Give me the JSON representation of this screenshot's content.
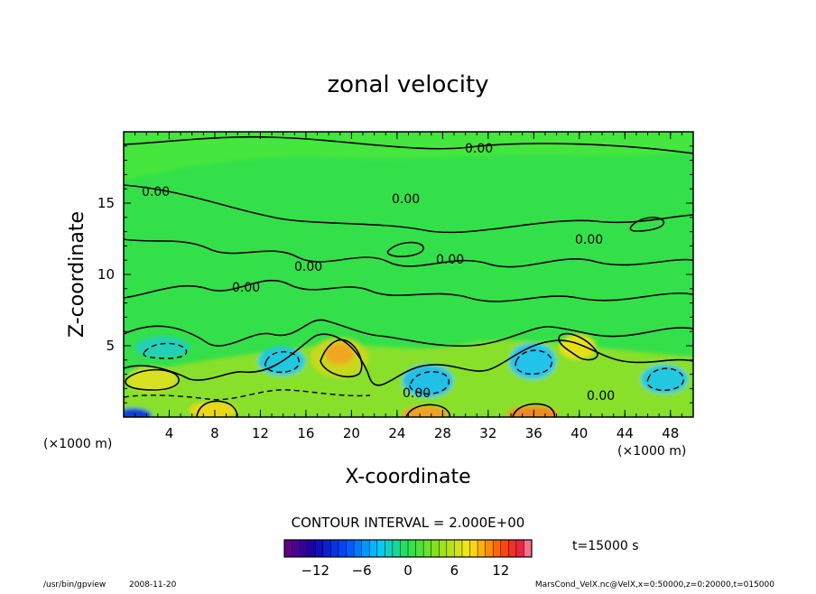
{
  "chart_data": {
    "type": "heatmap",
    "title": "zonal velocity",
    "xlabel": "X-coordinate",
    "ylabel": "Z-coordinate",
    "x_unit_label": "(×1000 m)",
    "x_unit_label_right": "(×1000 m)",
    "xlim": [
      0,
      50
    ],
    "ylim": [
      0,
      20
    ],
    "x_ticks": [
      4,
      8,
      12,
      16,
      20,
      24,
      28,
      32,
      36,
      40,
      44,
      48
    ],
    "x_tick_labels": [
      "4",
      "8",
      "12",
      "16",
      "20",
      "24",
      "28",
      "32",
      "36",
      "40",
      "44",
      "48"
    ],
    "y_ticks": [
      5,
      10,
      15
    ],
    "y_tick_labels": [
      "5",
      "10",
      "15"
    ],
    "contour_interval_text": "CONTOUR INTERVAL = 2.000E+00",
    "contour_label": "0.00",
    "time_label": "t=15000 s",
    "colorbar": {
      "range": [
        -16,
        16
      ],
      "tick_values": [
        -12,
        -6,
        0,
        6,
        12
      ],
      "tick_labels": [
        "−12",
        "−6",
        "0",
        "6",
        "12"
      ]
    },
    "features": [
      {
        "x": 19.0,
        "z": 4.2,
        "u": 9
      },
      {
        "x": 2.2,
        "z": 2.6,
        "u": 7
      },
      {
        "x": 7.8,
        "z": 0.7,
        "u": 7
      },
      {
        "x": 26.5,
        "z": 0.5,
        "u": 10
      },
      {
        "x": 35.8,
        "z": 0.4,
        "u": 11
      },
      {
        "x": 40.0,
        "z": 5.5,
        "u": 6
      },
      {
        "x": 3.5,
        "z": 4.5,
        "u": -4
      },
      {
        "x": 14.0,
        "z": 4.0,
        "u": -3
      },
      {
        "x": 26.5,
        "z": 2.7,
        "u": -5
      },
      {
        "x": 34.5,
        "z": 4.2,
        "u": -5
      },
      {
        "x": 47.5,
        "z": 2.7,
        "u": -5
      },
      {
        "x": 0.8,
        "z": 0.3,
        "u": -12
      }
    ]
  },
  "footer": {
    "program": "/usr/bin/gpview",
    "date": "2008-11-20",
    "source": "MarsCond_VelX.nc@VelX,x=0:50000,z=0:20000,t=015000"
  },
  "colors": {
    "background_field": "#33e04a",
    "contour_line": "#000000",
    "axis": "#000000"
  }
}
